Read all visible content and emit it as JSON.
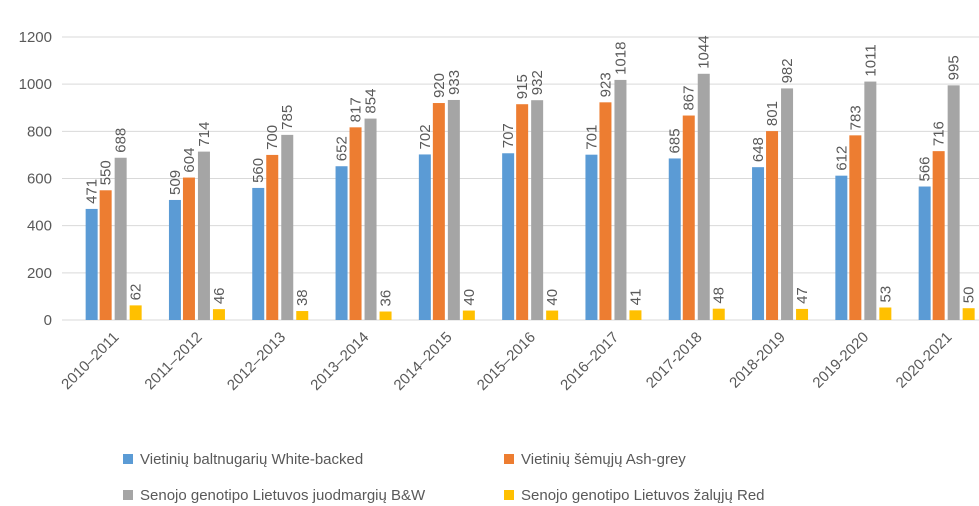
{
  "chart_data": {
    "type": "bar",
    "categories": [
      "2010–2011",
      "2011–2012",
      "2012–2013",
      "2013–2014",
      "2014–2015",
      "2015–2016",
      "2016–2017",
      "2017-2018",
      "2018-2019",
      "2019-2020",
      "2020-2021"
    ],
    "series": [
      {
        "name": "Vietinių baltnugarių White-backed",
        "color": "#5b9bd5",
        "values": [
          471,
          509,
          560,
          652,
          702,
          707,
          701,
          685,
          648,
          612,
          566
        ]
      },
      {
        "name": "Vietinių šėmųjų Ash-grey",
        "color": "#ed7d31",
        "values": [
          550,
          604,
          700,
          817,
          920,
          915,
          923,
          867,
          801,
          783,
          716
        ]
      },
      {
        "name": "Senojo genotipo Lietuvos juodmargių B&W",
        "color": "#a5a5a5",
        "values": [
          688,
          714,
          785,
          854,
          933,
          932,
          1018,
          1044,
          982,
          1011,
          995
        ]
      },
      {
        "name": "Senojo genotipo Lietuvos žalųjų Red",
        "color": "#ffc000",
        "values": [
          62,
          46,
          38,
          36,
          40,
          40,
          41,
          48,
          47,
          53,
          50
        ]
      }
    ],
    "ylim": [
      0,
      1200
    ],
    "yticks": [
      0,
      200,
      400,
      600,
      800,
      1000,
      1200
    ],
    "grid": true,
    "legend": "bottom"
  }
}
